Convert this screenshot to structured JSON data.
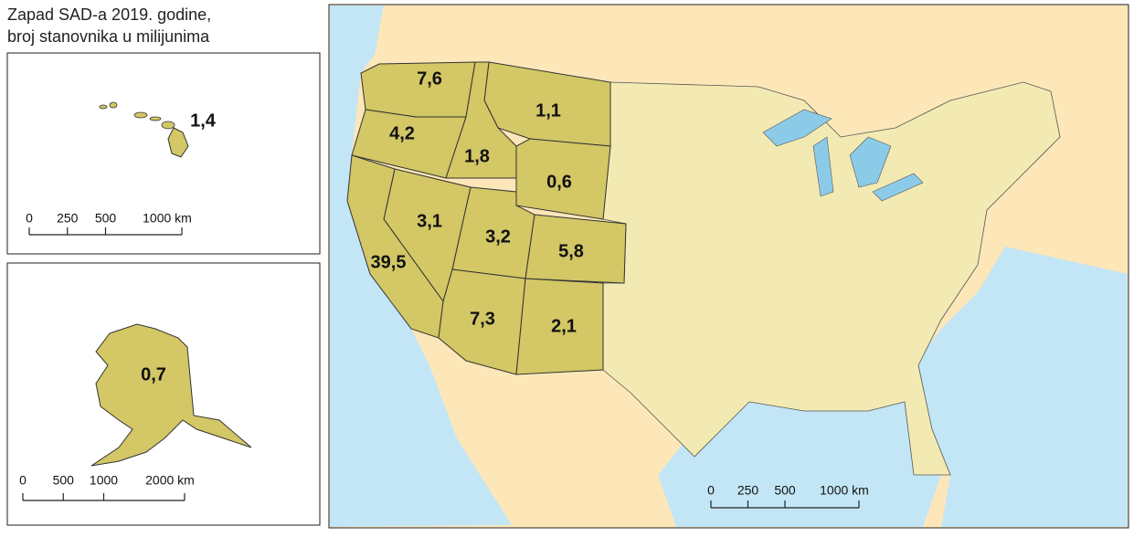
{
  "title": [
    "Zapad SAD-a 2019. godine,",
    "broj stanovnika u milijunima"
  ],
  "main_map": {
    "regions": [
      {
        "value": 7.6,
        "label": "7,6"
      },
      {
        "value": 1.1,
        "label": "1,1"
      },
      {
        "value": 4.2,
        "label": "4,2"
      },
      {
        "value": 1.8,
        "label": "1,8"
      },
      {
        "value": 0.6,
        "label": "0,6"
      },
      {
        "value": 3.1,
        "label": "3,1"
      },
      {
        "value": 3.2,
        "label": "3,2"
      },
      {
        "value": 5.8,
        "label": "5,8"
      },
      {
        "value": 39.5,
        "label": "39,5"
      },
      {
        "value": 7.3,
        "label": "7,3"
      },
      {
        "value": 2.1,
        "label": "2,1"
      }
    ],
    "scale_bar": {
      "ticks": [
        0,
        250,
        500,
        {
          "value": 1000,
          "label": "1000 km"
        }
      ]
    }
  },
  "hawaii": {
    "region": {
      "value": 1.4,
      "label": "1,4"
    },
    "scale_bar": {
      "ticks": [
        0,
        250,
        500,
        {
          "value": 1000,
          "label": "1000 km"
        }
      ]
    }
  },
  "alaska": {
    "region": {
      "value": 0.7,
      "label": "0,7"
    },
    "scale_bar": {
      "ticks": [
        0,
        500,
        1000,
        {
          "value": 2000,
          "label": "2000 km"
        }
      ]
    }
  }
}
